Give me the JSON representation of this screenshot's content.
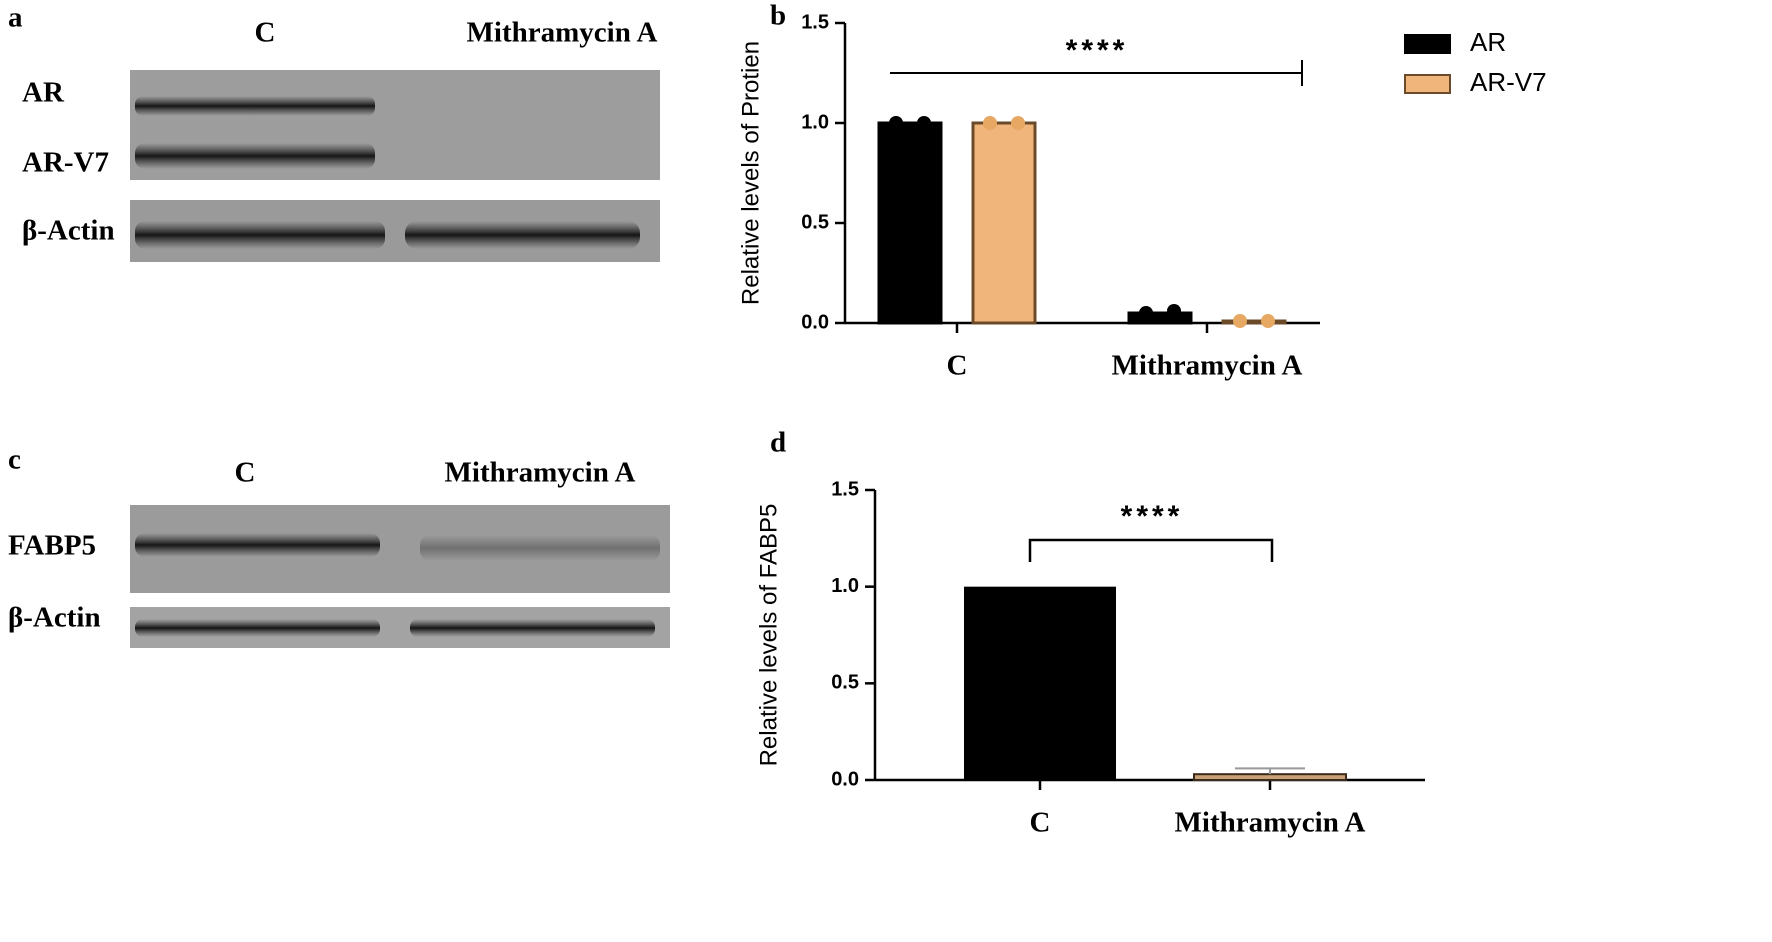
{
  "blots": [
    {
      "panel_label": "a",
      "lanes": [
        "C",
        "Mithramycin A"
      ],
      "rows": [
        "AR",
        "AR-V7",
        "β-Actin"
      ]
    },
    {
      "panel_label": "c",
      "lanes": [
        "C",
        "Mithramycin A"
      ],
      "rows": [
        "FABP5",
        "β-Actin"
      ]
    }
  ],
  "chart_data": [
    {
      "type": "grouped-bar",
      "panel_label": "b",
      "ylabel": "Relative levels of Protien",
      "categories": [
        "C",
        "Mithramycin A"
      ],
      "series": [
        {
          "name": "AR",
          "color": "#000000",
          "values": [
            1.0,
            0.05
          ],
          "points": [
            [
              1.0,
              1.0
            ],
            [
              0.05,
              0.06
            ]
          ]
        },
        {
          "name": "AR-V7",
          "color": "#f0b57a",
          "values": [
            1.0,
            0.01
          ],
          "points": [
            [
              1.0,
              1.0
            ],
            [
              0.01,
              0.01
            ]
          ]
        }
      ],
      "ylim": [
        0,
        1.5
      ],
      "yticks": [
        {
          "value": 0,
          "label": "0.0"
        },
        {
          "value": 0.5,
          "label": "0.5"
        },
        {
          "value": 1,
          "label": "1.0"
        },
        {
          "value": 1.5,
          "label": "1.5"
        }
      ],
      "significance": "****",
      "legend": "upper right",
      "grid": false
    },
    {
      "type": "bar",
      "panel_label": "d",
      "ylabel": "Relative levels of FABP5",
      "categories": [
        "C",
        "Mithramycin A"
      ],
      "values": [
        1.0,
        0.03
      ],
      "errors": [
        0,
        0.03
      ],
      "colors": [
        "#000000",
        "#c9a27a"
      ],
      "ylim": [
        0,
        1.5
      ],
      "yticks": [
        {
          "value": 0,
          "label": "0.0"
        },
        {
          "value": 0.5,
          "label": "0.5"
        },
        {
          "value": 1,
          "label": "1.0"
        },
        {
          "value": 1.5,
          "label": "1.5"
        }
      ],
      "significance": "****",
      "grid": false
    }
  ]
}
